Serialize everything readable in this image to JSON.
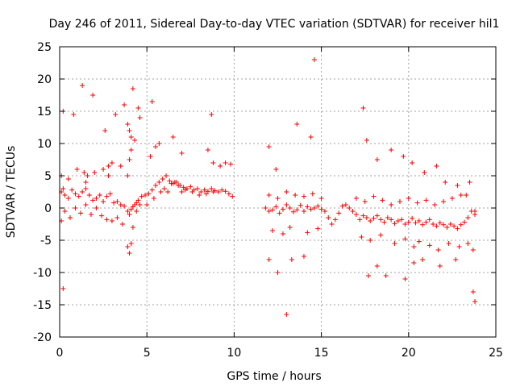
{
  "chart_data": {
    "type": "scatter",
    "title": "Day 246 of 2011, Sidereal Day-to-day VTEC variation (SDTVAR) for receiver hil1",
    "xlabel": "GPS time / hours",
    "ylabel": "SDTVAR / TECUs",
    "xlim": [
      0,
      25
    ],
    "ylim": [
      -20,
      25
    ],
    "xticks": [
      0,
      5,
      10,
      15,
      20,
      25
    ],
    "yticks": [
      -20,
      -15,
      -10,
      -5,
      0,
      5,
      10,
      15,
      20,
      25
    ],
    "xtick_labels": [
      "0",
      "5",
      "10",
      "15",
      "20",
      "25"
    ],
    "ytick_labels": [
      "-20",
      "-15",
      "-10",
      "-5",
      "0",
      "5",
      "10",
      "15",
      "20",
      "25"
    ],
    "grid": true,
    "marker": "+",
    "color": "#ff0000",
    "series": [
      {
        "name": "SDTVAR",
        "x": [
          0.1,
          0.2,
          0.3,
          0.5,
          0.7,
          0.9,
          1.1,
          1.3,
          1.5,
          1.7,
          1.9,
          2.1,
          2.3,
          2.5,
          2.7,
          2.9,
          3.1,
          3.3,
          3.5,
          3.7,
          3.9,
          4.0,
          4.1,
          4.2,
          4.3,
          4.4,
          4.5,
          4.7,
          4.9,
          5.1,
          5.3,
          5.5,
          5.7,
          5.9,
          6.1,
          6.3,
          6.5,
          6.7,
          6.9,
          7.1,
          7.3,
          7.5,
          7.7,
          7.9,
          8.1,
          8.3,
          8.5,
          8.7,
          8.9,
          9.1,
          9.3,
          9.5,
          9.7,
          9.9,
          0.1,
          0.3,
          0.6,
          0.9,
          1.2,
          1.5,
          1.8,
          2.1,
          2.4,
          2.7,
          3.0,
          3.3,
          3.6,
          3.9,
          4.0,
          4.1,
          4.2,
          4.4,
          4.6,
          5.0,
          5.4,
          5.8,
          6.0,
          6.2,
          6.4,
          6.6,
          6.8,
          7.0,
          7.2,
          7.6,
          8.0,
          8.4,
          8.8,
          0.1,
          0.5,
          1.0,
          1.4,
          1.5,
          1.6,
          2.0,
          2.5,
          2.8,
          3.0,
          3.5,
          3.9,
          4.0,
          4.1,
          4.3,
          4.5,
          4.6,
          5.2,
          5.5,
          5.7,
          6.5,
          7.0,
          8.5,
          8.8,
          9.2,
          9.5,
          9.8,
          0.2,
          0.8,
          1.3,
          1.9,
          2.6,
          2.8,
          3.2,
          3.7,
          3.9,
          4.0,
          4.1,
          4.2,
          5.3,
          8.7,
          0.2,
          12.0,
          12.5,
          13.0,
          13.3,
          14.0,
          14.6,
          17.4,
          17.7,
          18.2,
          18.7,
          19.8,
          20.3,
          20.8,
          21.8,
          22.7,
          23.7,
          23.8,
          11.8,
          12.0,
          12.2,
          12.4,
          12.6,
          12.8,
          13.0,
          13.2,
          13.4,
          13.6,
          13.8,
          14.0,
          14.2,
          14.4,
          14.6,
          14.8,
          15.0,
          15.2,
          15.4,
          15.6,
          15.8,
          16.0,
          16.2,
          16.4,
          16.6,
          16.8,
          17.0,
          17.2,
          17.4,
          17.6,
          17.8,
          18.0,
          18.2,
          18.4,
          18.6,
          18.8,
          19.0,
          19.2,
          19.4,
          19.6,
          19.8,
          20.0,
          20.2,
          20.4,
          20.6,
          20.8,
          21.0,
          21.2,
          21.4,
          21.6,
          21.8,
          22.0,
          22.2,
          22.4,
          22.6,
          22.8,
          23.0,
          23.2,
          23.4,
          23.6,
          23.8,
          12.0,
          12.5,
          13.0,
          13.5,
          14.0,
          14.5,
          15.0,
          17.0,
          17.5,
          18.0,
          18.5,
          19.0,
          19.5,
          20.0,
          20.5,
          21.0,
          21.5,
          22.0,
          22.5,
          23.0,
          23.5,
          12.2,
          12.8,
          13.2,
          14.2,
          14.8,
          17.3,
          17.8,
          18.4,
          19.2,
          19.8,
          20.3,
          20.6,
          21.2,
          21.7,
          22.3,
          22.9,
          23.4,
          23.7,
          12.0,
          12.4,
          13.6,
          14.4,
          17.6,
          18.2,
          19.0,
          19.7,
          20.2,
          20.9,
          21.6,
          22.1,
          22.8,
          23.3,
          23.8
        ],
        "y": [
          2.5,
          3.0,
          2.0,
          1.5,
          2.8,
          2.2,
          1.8,
          2.5,
          3.0,
          2.0,
          1.2,
          1.5,
          2.0,
          1.0,
          1.8,
          2.2,
          0.8,
          1.0,
          0.5,
          0.3,
          -0.5,
          -1.0,
          -0.2,
          0.2,
          0.5,
          0.8,
          1.2,
          1.8,
          2.0,
          2.2,
          2.8,
          3.5,
          4.0,
          4.5,
          5.0,
          4.2,
          3.8,
          4.0,
          3.5,
          3.2,
          3.0,
          3.3,
          2.8,
          3.0,
          2.5,
          2.8,
          2.6,
          3.0,
          2.7,
          2.5,
          2.8,
          2.6,
          2.2,
          1.8,
          -2.0,
          -0.5,
          -1.5,
          0.0,
          -0.8,
          0.5,
          -1.0,
          0.0,
          -1.2,
          -1.8,
          -2.0,
          -1.5,
          -2.5,
          -6.0,
          -7.0,
          -5.5,
          -3.0,
          -0.5,
          0.5,
          0.5,
          1.5,
          2.5,
          3.0,
          2.5,
          3.8,
          4.0,
          3.5,
          2.5,
          2.8,
          2.5,
          2.0,
          2.2,
          2.5,
          5.0,
          4.5,
          6.0,
          5.5,
          4.0,
          5.0,
          5.5,
          6.0,
          5.0,
          7.0,
          6.5,
          5.0,
          7.5,
          9.0,
          10.5,
          15.5,
          14.0,
          8.0,
          9.5,
          10.0,
          11.0,
          8.5,
          9.0,
          7.0,
          6.5,
          7.0,
          6.8,
          15.0,
          14.5,
          19.0,
          17.5,
          12.0,
          6.5,
          14.5,
          16.0,
          13.0,
          12.0,
          11.0,
          18.5,
          16.5,
          14.5,
          -12.5,
          -8.0,
          -10.0,
          -16.5,
          -8.0,
          -7.5,
          23.0,
          15.5,
          -10.5,
          -9.0,
          -10.5,
          -11.0,
          -8.5,
          -8.0,
          -9.0,
          -8.0,
          -13.0,
          -14.5,
          0.0,
          -0.5,
          -0.3,
          0.2,
          -0.8,
          -0.2,
          0.5,
          0.0,
          -0.6,
          -0.3,
          0.4,
          -0.5,
          0.2,
          -0.2,
          0.0,
          0.3,
          -0.2,
          -0.5,
          -1.5,
          -2.5,
          -1.8,
          -0.8,
          0.3,
          0.5,
          0.0,
          -0.5,
          -1.0,
          -1.8,
          -1.2,
          -1.5,
          -2.0,
          -1.6,
          -1.2,
          -1.8,
          -2.2,
          -1.5,
          -1.8,
          -2.4,
          -2.0,
          -1.8,
          -2.5,
          -2.2,
          -1.6,
          -2.3,
          -2.0,
          -2.6,
          -2.2,
          -1.8,
          -2.5,
          -2.8,
          -2.3,
          -2.6,
          -3.0,
          -2.5,
          -2.8,
          -3.2,
          -2.6,
          -2.2,
          -1.5,
          -0.5,
          -1.0,
          2.0,
          1.5,
          2.5,
          2.0,
          1.8,
          2.2,
          1.5,
          1.5,
          1.0,
          1.8,
          1.2,
          0.5,
          1.0,
          1.5,
          0.8,
          1.2,
          0.5,
          1.0,
          1.5,
          2.0,
          4.0,
          -3.5,
          -4.0,
          -3.0,
          -3.8,
          -3.2,
          -4.5,
          -5.0,
          -4.2,
          -5.5,
          -4.8,
          -6.0,
          -5.2,
          -5.8,
          -6.5,
          -5.5,
          -6.0,
          -5.5,
          -6.5,
          9.5,
          6.0,
          13.0,
          11.0,
          10.5,
          7.5,
          9.0,
          8.0,
          7.0,
          5.5,
          6.5,
          4.0,
          3.5,
          2.0,
          -0.5
        ]
      }
    ]
  }
}
